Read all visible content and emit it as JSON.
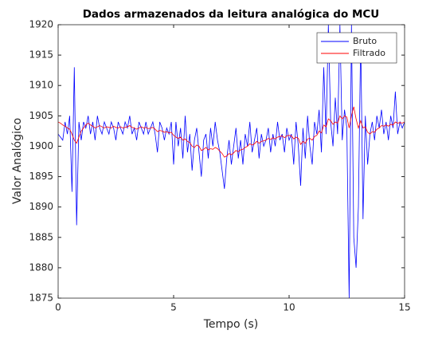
{
  "chart_data": {
    "type": "line",
    "title": "Dados armazenados da leitura analógica do MCU",
    "x_label": "Tempo (s)",
    "y_label": "Valor Analógico",
    "x": [
      0,
      0.1,
      0.2,
      0.3,
      0.4,
      0.5,
      0.6,
      0.7,
      0.8,
      0.9,
      1,
      1.1,
      1.2,
      1.3,
      1.4,
      1.5,
      1.6,
      1.7,
      1.8,
      1.9,
      2,
      2.1,
      2.2,
      2.3,
      2.4,
      2.5,
      2.6,
      2.7,
      2.8,
      2.9,
      3,
      3.1,
      3.2,
      3.3,
      3.4,
      3.5,
      3.6,
      3.7,
      3.8,
      3.9,
      4,
      4.1,
      4.2,
      4.3,
      4.4,
      4.5,
      4.6,
      4.7,
      4.8,
      4.9,
      5,
      5.1,
      5.2,
      5.3,
      5.4,
      5.5,
      5.6,
      5.7,
      5.8,
      5.9,
      6,
      6.1,
      6.2,
      6.3,
      6.4,
      6.5,
      6.6,
      6.7,
      6.8,
      6.9,
      7,
      7.1,
      7.2,
      7.3,
      7.4,
      7.5,
      7.6,
      7.7,
      7.8,
      7.9,
      8,
      8.1,
      8.2,
      8.3,
      8.4,
      8.5,
      8.6,
      8.7,
      8.8,
      8.9,
      9,
      9.1,
      9.2,
      9.3,
      9.4,
      9.5,
      9.6,
      9.7,
      9.8,
      9.9,
      10,
      10.1,
      10.2,
      10.3,
      10.4,
      10.5,
      10.6,
      10.7,
      10.8,
      10.9,
      11,
      11.1,
      11.2,
      11.3,
      11.4,
      11.5,
      11.6,
      11.7,
      11.8,
      11.9,
      12,
      12.1,
      12.2,
      12.3,
      12.4,
      12.5,
      12.6,
      12.7,
      12.8,
      12.9,
      13,
      13.1,
      13.2,
      13.3,
      13.4,
      13.5,
      13.6,
      13.7,
      13.8,
      13.9,
      14,
      14.1,
      14.2,
      14.3,
      14.4,
      14.5,
      14.6,
      14.7,
      14.8,
      14.9,
      15
    ],
    "series": [
      {
        "name": "Bruto",
        "color": "#0000ff",
        "values": [
          1902,
          1901.5,
          1901,
          1904,
          1902,
          1905,
          1892.5,
          1913,
          1887,
          1904,
          1901,
          1904,
          1903,
          1905,
          1902,
          1904,
          1901,
          1905,
          1903,
          1902,
          1904,
          1903,
          1902,
          1904,
          1903,
          1901,
          1904,
          1903,
          1902,
          1904,
          1903,
          1905,
          1902,
          1903,
          1901,
          1904,
          1903,
          1902,
          1904,
          1902,
          1903,
          1904,
          1902,
          1899,
          1904,
          1903,
          1901,
          1903,
          1902,
          1904,
          1897,
          1904,
          1900,
          1903,
          1898,
          1905,
          1899,
          1902,
          1896,
          1901,
          1903,
          1899,
          1895,
          1901,
          1902,
          1898,
          1903,
          1900,
          1904,
          1901,
          1899,
          1896,
          1893,
          1898,
          1901,
          1897,
          1900,
          1903,
          1898,
          1901,
          1897,
          1902,
          1900,
          1904,
          1899,
          1901,
          1903,
          1898,
          1902,
          1900,
          1901,
          1903,
          1899,
          1902,
          1900,
          1904,
          1901,
          1902,
          1899,
          1903,
          1901,
          1902,
          1897,
          1904,
          1900,
          1893.5,
          1903,
          1898,
          1905,
          1900,
          1897,
          1904,
          1902,
          1906,
          1899,
          1913,
          1902,
          1920,
          1904,
          1900,
          1908,
          1902,
          1920,
          1901,
          1906,
          1903,
          1875,
          1920,
          1885,
          1880,
          1890,
          1918,
          1888,
          1905,
          1897,
          1902,
          1904,
          1901,
          1905,
          1903,
          1906,
          1902,
          1904,
          1901,
          1905,
          1903,
          1909,
          1902,
          1904,
          1903,
          1904
        ]
      },
      {
        "name": "Filtrado",
        "color": "#ff0000",
        "values": [
          1904,
          1903.8,
          1903.5,
          1903.3,
          1903,
          1902.8,
          1902,
          1901,
          1900.5,
          1901.5,
          1902.5,
          1903,
          1903.5,
          1903.8,
          1903.5,
          1903.3,
          1903,
          1903.2,
          1903.4,
          1903.2,
          1903,
          1903.2,
          1903.1,
          1903,
          1903.3,
          1903.1,
          1903,
          1903.2,
          1903,
          1903.1,
          1903.2,
          1903.4,
          1903.1,
          1903,
          1902.8,
          1903,
          1903.2,
          1903,
          1903.1,
          1902.9,
          1903,
          1903.1,
          1902.8,
          1902.4,
          1902.6,
          1902.5,
          1902.3,
          1902.4,
          1902.2,
          1902.3,
          1901.8,
          1901.5,
          1901.3,
          1901.5,
          1901,
          1901.2,
          1900.8,
          1900.6,
          1900,
          1899.8,
          1900.2,
          1900,
          1899.3,
          1899.5,
          1899.8,
          1899.4,
          1899.6,
          1899.5,
          1899.8,
          1899.6,
          1899.2,
          1898.8,
          1898.2,
          1898.4,
          1898.8,
          1898.6,
          1898.9,
          1899.3,
          1899.1,
          1899.4,
          1899.5,
          1899.8,
          1900,
          1900.4,
          1900.2,
          1900.4,
          1900.8,
          1900.5,
          1900.8,
          1900.9,
          1901,
          1901.3,
          1901.1,
          1901.4,
          1901.2,
          1901.5,
          1901.6,
          1901.7,
          1901.4,
          1901.7,
          1901.8,
          1901.7,
          1901.2,
          1901.5,
          1901.3,
          1900.3,
          1900.8,
          1900.5,
          1901.2,
          1901.3,
          1901,
          1901.6,
          1901.8,
          1902.5,
          1902.2,
          1903.5,
          1903.2,
          1904.5,
          1904.2,
          1903.6,
          1904,
          1903.8,
          1905,
          1904.5,
          1905,
          1904.8,
          1903,
          1905,
          1906.5,
          1904.5,
          1903,
          1904.2,
          1903,
          1903.2,
          1902.3,
          1902,
          1902.4,
          1902.3,
          1902.8,
          1903,
          1903.4,
          1903.3,
          1903.5,
          1903.3,
          1903.6,
          1903.5,
          1904,
          1903.8,
          1903.9,
          1903.8,
          1904
        ]
      }
    ],
    "xlim": [
      0,
      15
    ],
    "xticks": [
      0,
      5,
      10,
      15
    ],
    "ylim": [
      1875,
      1920
    ],
    "yticks": [
      1875,
      1880,
      1885,
      1890,
      1895,
      1900,
      1905,
      1910,
      1915,
      1920
    ],
    "grid": false,
    "legend": "top-right"
  }
}
